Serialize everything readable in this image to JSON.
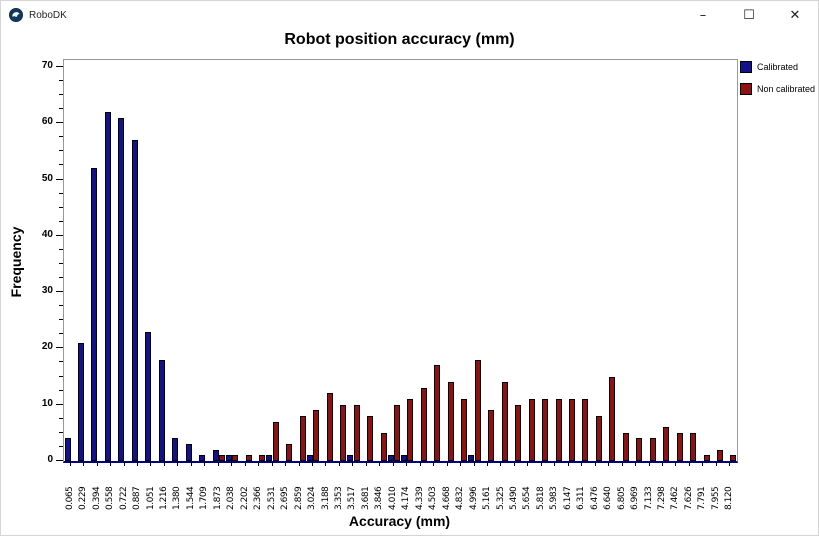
{
  "window": {
    "title": "RoboDK",
    "controls": {
      "minimize": "–",
      "maximize": "☐",
      "close": "✕"
    }
  },
  "chart_data": {
    "type": "bar",
    "title": "Robot position accuracy (mm)",
    "xlabel": "Accuracy (mm)",
    "ylabel": "Frequency",
    "ylim": [
      0,
      70
    ],
    "y_major_ticks": [
      0,
      10,
      20,
      30,
      40,
      50,
      60,
      70
    ],
    "y_minor_step": 2.5,
    "grid": false,
    "legend_position": "top-right-outside",
    "categories": [
      "0.065",
      "0.229",
      "0.394",
      "0.558",
      "0.722",
      "0.887",
      "1.051",
      "1.216",
      "1.380",
      "1.544",
      "1.709",
      "1.873",
      "2.038",
      "2.202",
      "2.366",
      "2.531",
      "2.695",
      "2.859",
      "3.024",
      "3.188",
      "3.353",
      "3.517",
      "3.681",
      "3.846",
      "4.010",
      "4.174",
      "4.339",
      "4.503",
      "4.668",
      "4.832",
      "4.996",
      "5.161",
      "5.325",
      "5.490",
      "5.654",
      "5.818",
      "5.983",
      "6.147",
      "6.311",
      "6.476",
      "6.640",
      "6.805",
      "6.969",
      "7.133",
      "7.298",
      "7.462",
      "7.626",
      "7.791",
      "7.955",
      "8.120"
    ],
    "series": [
      {
        "name": "Calibrated",
        "color": "#12128C",
        "values": [
          4,
          21,
          52,
          62,
          61,
          57,
          23,
          18,
          4,
          3,
          1,
          2,
          1,
          0,
          0,
          1,
          0,
          0,
          1,
          0,
          0,
          1,
          0,
          0,
          1,
          1,
          0,
          0,
          0,
          0,
          1,
          0,
          0,
          0,
          0,
          0,
          0,
          0,
          0,
          0,
          0,
          0,
          0,
          0,
          0,
          0,
          0,
          0,
          0,
          0
        ]
      },
      {
        "name": "Non calibrated",
        "color": "#8F1111",
        "values": [
          0,
          0,
          0,
          0,
          0,
          0,
          0,
          0,
          0,
          0,
          0,
          1,
          1,
          1,
          1,
          7,
          3,
          8,
          9,
          12,
          10,
          10,
          8,
          5,
          10,
          11,
          13,
          17,
          14,
          11,
          18,
          9,
          14,
          10,
          11,
          11,
          11,
          11,
          11,
          8,
          15,
          5,
          4,
          4,
          6,
          5,
          5,
          1,
          2,
          1
        ]
      }
    ],
    "colors": {
      "axis_line": "#000080",
      "plot_border": "#999999",
      "tick": "#000000"
    }
  }
}
